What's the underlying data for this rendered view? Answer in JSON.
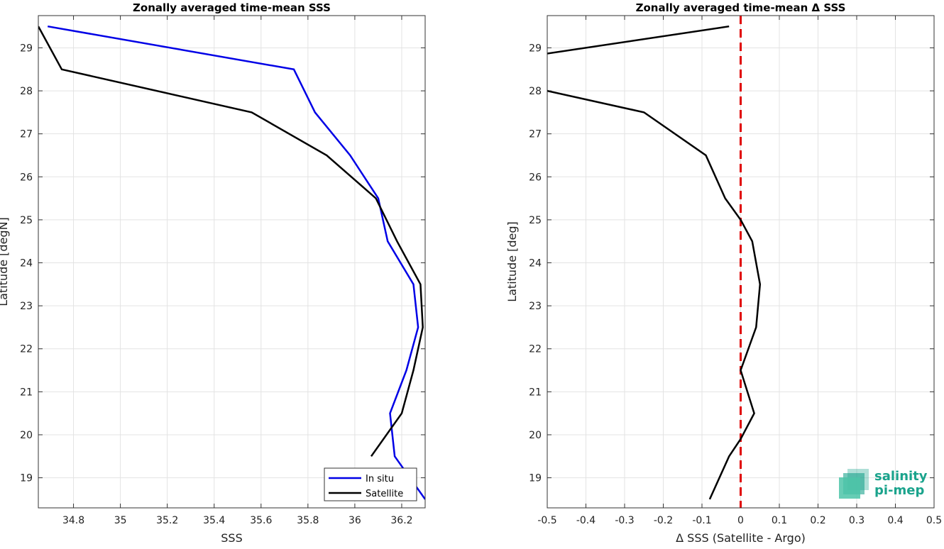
{
  "chart_data": [
    {
      "type": "line",
      "title": "Zonally averaged time-mean SSS",
      "xlabel": "SSS",
      "ylabel": "Latitude [degN]",
      "xlim": [
        34.65,
        36.3
      ],
      "ylim": [
        18.3,
        29.75
      ],
      "x_ticks": [
        "34.8",
        "35",
        "35.2",
        "35.4",
        "35.6",
        "35.8",
        "36",
        "36.2"
      ],
      "y_ticks": [
        "19",
        "20",
        "21",
        "22",
        "23",
        "24",
        "25",
        "26",
        "27",
        "28",
        "29"
      ],
      "grid": true,
      "legend_position": "bottom-right",
      "series": [
        {
          "name": "In situ",
          "color": "#0000e6",
          "points": [
            [
              34.69,
              29.5
            ],
            [
              35.74,
              28.5
            ],
            [
              35.83,
              27.5
            ],
            [
              35.98,
              26.5
            ],
            [
              36.1,
              25.5
            ],
            [
              36.14,
              24.5
            ],
            [
              36.25,
              23.5
            ],
            [
              36.27,
              22.5
            ],
            [
              36.22,
              21.5
            ],
            [
              36.15,
              20.5
            ],
            [
              36.17,
              19.5
            ],
            [
              36.3,
              18.5
            ]
          ]
        },
        {
          "name": "Satellite",
          "color": "#000000",
          "points": [
            [
              34.65,
              29.5
            ],
            [
              34.75,
              28.5
            ],
            [
              35.56,
              27.5
            ],
            [
              35.88,
              26.5
            ],
            [
              36.09,
              25.5
            ],
            [
              36.18,
              24.5
            ],
            [
              36.28,
              23.5
            ],
            [
              36.29,
              22.5
            ],
            [
              36.25,
              21.5
            ],
            [
              36.2,
              20.5
            ],
            [
              36.07,
              19.5
            ]
          ]
        }
      ]
    },
    {
      "type": "line",
      "title": "Zonally averaged time-mean Δ SSS",
      "xlabel": "Δ SSS (Satellite - Argo)",
      "ylabel": "Latitude [deg]",
      "xlim": [
        -0.5,
        0.5
      ],
      "ylim": [
        18.3,
        29.75
      ],
      "x_ticks": [
        "-0.5",
        "-0.4",
        "-0.3",
        "-0.2",
        "-0.1",
        "0",
        "0.1",
        "0.2",
        "0.3",
        "0.4",
        "0.5"
      ],
      "y_ticks": [
        "19",
        "20",
        "21",
        "22",
        "23",
        "24",
        "25",
        "26",
        "27",
        "28",
        "29"
      ],
      "grid": true,
      "reference_line": {
        "x": 0,
        "color": "#e00000",
        "style": "dashed"
      },
      "series": [
        {
          "color": "#000000",
          "points": [
            [
              -0.03,
              29.5
            ],
            [
              -0.55,
              28.8
            ],
            [
              -0.5,
              28.0
            ],
            [
              -0.25,
              27.5
            ],
            [
              -0.09,
              26.5
            ],
            [
              -0.04,
              25.5
            ],
            [
              0.0,
              25.0
            ],
            [
              0.03,
              24.5
            ],
            [
              0.05,
              23.5
            ],
            [
              0.04,
              22.5
            ],
            [
              0.0,
              21.5
            ],
            [
              0.035,
              20.5
            ],
            [
              0.0,
              19.9
            ],
            [
              -0.03,
              19.5
            ],
            [
              -0.08,
              18.5
            ]
          ]
        }
      ]
    }
  ],
  "logo": {
    "line1": "salinity",
    "line2": "pi-mep",
    "color": "#1aa38c"
  }
}
